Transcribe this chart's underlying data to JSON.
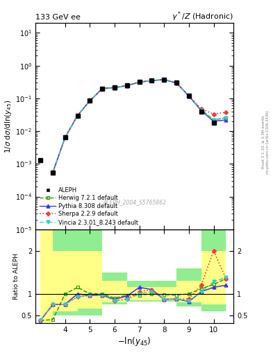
{
  "title_left": "133 GeV ee",
  "title_right": "γ*/Z (Hadronic)",
  "xlabel": "-ln(y_{45})",
  "ylabel_main": "1/σ dσ/dln(y_{45})",
  "ylabel_ratio": "Ratio to ALEPH",
  "watermark": "ALEPH_2004_S5765862",
  "right_label": "Rivet 3.1.10; ≥ 3.3M events",
  "right_label2": "mcplots.cern.ch [arXiv:1306.3436]",
  "x_data": [
    3.5,
    4.0,
    4.5,
    5.0,
    5.5,
    6.0,
    6.5,
    7.0,
    7.5,
    8.0,
    8.5,
    9.0,
    9.5,
    10.0,
    10.5
  ],
  "aleph_y": [
    0.00055,
    0.0065,
    0.03,
    0.085,
    0.2,
    0.22,
    0.25,
    0.32,
    0.35,
    0.38,
    0.3,
    0.12,
    0.04,
    0.018,
    null
  ],
  "aleph_x_extra": [
    3.0
  ],
  "aleph_y_extra": [
    0.0013
  ],
  "herwig_y": [
    0.00055,
    0.0065,
    0.03,
    0.085,
    0.2,
    0.22,
    0.245,
    0.315,
    0.35,
    0.375,
    0.295,
    0.118,
    0.045,
    0.022,
    0.026
  ],
  "pythia_y": [
    0.00055,
    0.0065,
    0.03,
    0.085,
    0.2,
    0.21,
    0.245,
    0.315,
    0.35,
    0.375,
    0.295,
    0.118,
    0.042,
    0.02,
    0.022
  ],
  "sherpa_y": [
    0.00055,
    0.0065,
    0.03,
    0.085,
    0.2,
    0.21,
    0.245,
    0.315,
    0.35,
    0.375,
    0.295,
    0.118,
    0.048,
    0.033,
    0.038
  ],
  "vincia_y": [
    0.00055,
    0.0065,
    0.03,
    0.085,
    0.2,
    0.21,
    0.245,
    0.315,
    0.35,
    0.375,
    0.295,
    0.118,
    0.044,
    0.022,
    0.025
  ],
  "herwig_ratio": [
    0.4,
    1.0,
    1.15,
    1.0,
    1.0,
    0.9,
    0.97,
    0.97,
    1.0,
    0.98,
    0.97,
    1.0,
    1.12,
    1.22,
    1.35
  ],
  "pythia_ratio": [
    0.75,
    0.76,
    1.0,
    0.96,
    0.97,
    0.87,
    0.95,
    1.15,
    1.1,
    0.87,
    0.88,
    0.82,
    1.05,
    1.15,
    1.2
  ],
  "sherpa_ratio": [
    0.75,
    0.76,
    0.93,
    0.96,
    0.97,
    0.84,
    0.88,
    1.05,
    1.1,
    0.87,
    0.88,
    0.88,
    1.2,
    2.0,
    1.35
  ],
  "vincia_ratio": [
    0.75,
    0.76,
    0.93,
    0.96,
    0.97,
    0.84,
    0.86,
    1.0,
    1.05,
    0.87,
    0.88,
    0.83,
    1.05,
    1.28,
    1.38
  ],
  "herwig_ratio_x": [
    3.5,
    4.0,
    4.5,
    5.0,
    5.5,
    6.0,
    6.5,
    7.0,
    7.5,
    8.0,
    8.5,
    9.0,
    9.5,
    10.0,
    10.5
  ],
  "herwig_ratio_extra": [
    0.38
  ],
  "pythia_ratio_extra": [
    0.38
  ],
  "sherpa_ratio_extra": [
    0.38
  ],
  "vincia_ratio_extra": [
    0.38
  ],
  "x_extra": [
    3.0
  ],
  "colors": {
    "aleph": "#000000",
    "herwig": "#339900",
    "pythia": "#3333ff",
    "sherpa": "#ff3333",
    "vincia": "#33cccc"
  },
  "xlim": [
    2.8,
    10.8
  ],
  "main_ylim": [
    1e-05,
    20.0
  ],
  "ratio_ylim": [
    0.32,
    2.5
  ],
  "band_edges": [
    3.0,
    3.5,
    4.5,
    5.5,
    6.5,
    7.5,
    8.5,
    9.5,
    10.5
  ],
  "band_green_lo": [
    0.0,
    0.5,
    0.5,
    0.75,
    0.82,
    0.82,
    0.7,
    0.6,
    0.6
  ],
  "band_green_hi": [
    3.0,
    2.5,
    2.5,
    1.5,
    1.3,
    1.3,
    1.6,
    2.5,
    2.5
  ],
  "band_yellow_lo": [
    0.0,
    0.6,
    0.65,
    0.8,
    0.85,
    0.85,
    0.8,
    0.75,
    0.75
  ],
  "band_yellow_hi": [
    3.0,
    2.0,
    2.0,
    1.3,
    1.15,
    1.15,
    1.3,
    2.0,
    2.0
  ]
}
